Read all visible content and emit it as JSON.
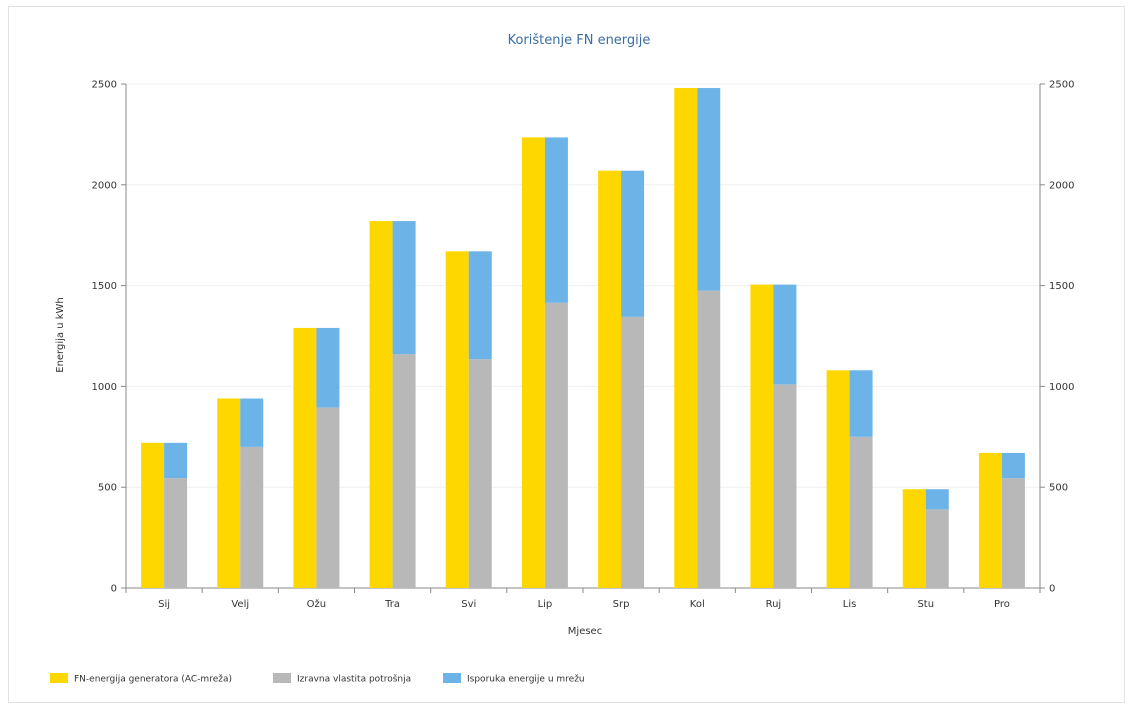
{
  "chart_data": {
    "type": "bar",
    "title": "Korištenje FN energije",
    "xlabel": "Mjesec",
    "ylabel": "Energija u kWh",
    "ylim": [
      0,
      2500
    ],
    "yticks": [
      0,
      500,
      1000,
      1500,
      2000,
      2500
    ],
    "grid": true,
    "legend_position": "bottom-left",
    "categories": [
      "Sij",
      "Velj",
      "Ožu",
      "Tra",
      "Svi",
      "Lip",
      "Srp",
      "Kol",
      "Ruj",
      "Lis",
      "Stu",
      "Pro"
    ],
    "series": [
      {
        "name": "FN-energija generatora (AC-mreža)",
        "color": "#ffd700",
        "stack": "generator",
        "values": [
          720,
          940,
          1290,
          1820,
          1670,
          2235,
          2070,
          2480,
          1505,
          1080,
          490,
          670
        ]
      },
      {
        "name": "Izravna vlastita potrošnja",
        "color": "#b8b8b8",
        "stack": "usage",
        "values": [
          545,
          700,
          895,
          1160,
          1135,
          1415,
          1345,
          1475,
          1010,
          750,
          390,
          545
        ]
      },
      {
        "name": "Isporuka energije u mrežu",
        "color": "#6cb4e8",
        "stack": "usage",
        "values": [
          175,
          240,
          395,
          660,
          535,
          820,
          725,
          1005,
          495,
          330,
          100,
          125
        ]
      }
    ]
  }
}
